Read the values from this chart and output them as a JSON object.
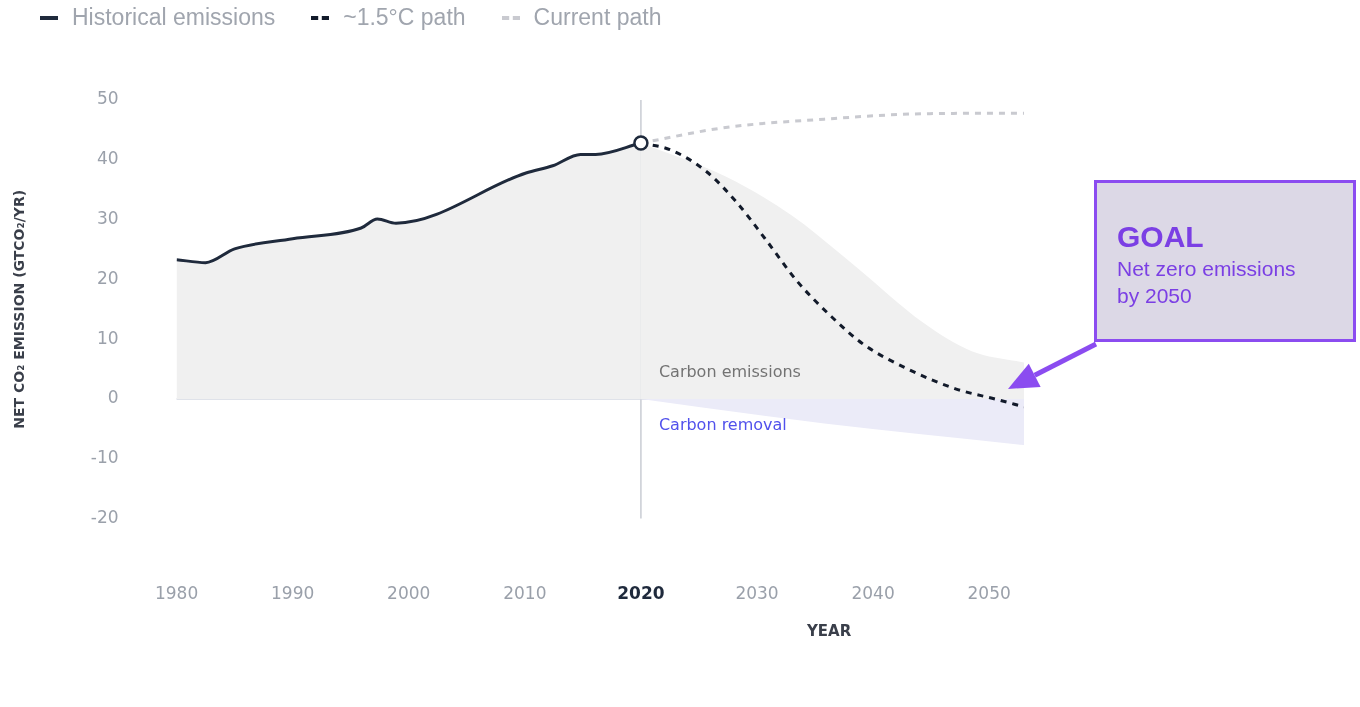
{
  "chart_data": {
    "type": "line",
    "xlabel": "YEAR",
    "ylabel": "NET CO₂ EMISSION (GTCO₂/YR)",
    "xlim": [
      1980,
      2053
    ],
    "xticks": [
      1980,
      1990,
      2000,
      2010,
      2020,
      2030,
      2040,
      2050
    ],
    "ylim": [
      -20,
      50
    ],
    "yticks": [
      -20,
      -10,
      0,
      10,
      20,
      30,
      40,
      50
    ],
    "grid": false,
    "legend": "top left",
    "ref_lines": [
      {
        "axis": "x",
        "value": 2020,
        "label": null,
        "color": "#c9ccd3"
      },
      {
        "axis": "y",
        "value": 0,
        "label": null,
        "color": "#d4d8e2"
      }
    ],
    "annotations": [
      "GOAL\nNet zero emissions\nby 2050"
    ],
    "series": [
      {
        "type": "area",
        "name": "Carbon emissions",
        "color": "#f0f0f0",
        "x": [
          2020,
          2027.3,
          2033,
          2038.6,
          2044.3,
          2048.5,
          2053
        ],
        "values": [
          42.8,
          37.2,
          30.7,
          22.0,
          12.8,
          8.0,
          6.1
        ]
      },
      {
        "type": "area",
        "name": "Carbon removal",
        "color": "#ebebf8",
        "x": [
          2020,
          2035.8,
          2053
        ],
        "values": [
          0,
          -4.1,
          -7.7
        ]
      },
      {
        "type": "area",
        "name": "Historical emissions",
        "color": "#1f2a3c",
        "line_style": "solid",
        "marker": "none",
        "x": [
          1980,
          1982.5,
          1985,
          1990,
          1995.9,
          1997.3,
          1998.9,
          2010.1,
          2012.4,
          2014.8,
          2016.1,
          2020
        ],
        "values": [
          23.3,
          22.8,
          25.1,
          26.8,
          28.6,
          30.1,
          29.4,
          37.8,
          39.0,
          40.9,
          40.9,
          42.8
        ]
      },
      {
        "type": "line",
        "name": "~1.5°C path",
        "color": "#121a2a",
        "line_style": "dashed",
        "marker": "none",
        "x": [
          2020,
          2022.5,
          2025.6,
          2028.2,
          2030.7,
          2033.5,
          2036.4,
          2039.2,
          2042.9,
          2047.1,
          2050.5,
          2053
        ],
        "values": [
          42.8,
          41.7,
          38.1,
          33.0,
          26.8,
          19.6,
          13.8,
          9.1,
          5.1,
          1.7,
          0,
          -1.3
        ]
      },
      {
        "type": "line",
        "name": "Current path",
        "color": "#c9cad0",
        "line_style": "dashed",
        "marker": "none",
        "x": [
          2020,
          2027.3,
          2035.8,
          2044.3,
          2053
        ],
        "values": [
          42.8,
          45.4,
          46.8,
          47.7,
          47.8
        ]
      },
      {
        "type": "scatter",
        "color": "#1f2a3c",
        "marker": "circle",
        "x": [
          2020
        ],
        "values": [
          42.8
        ]
      }
    ]
  }
}
